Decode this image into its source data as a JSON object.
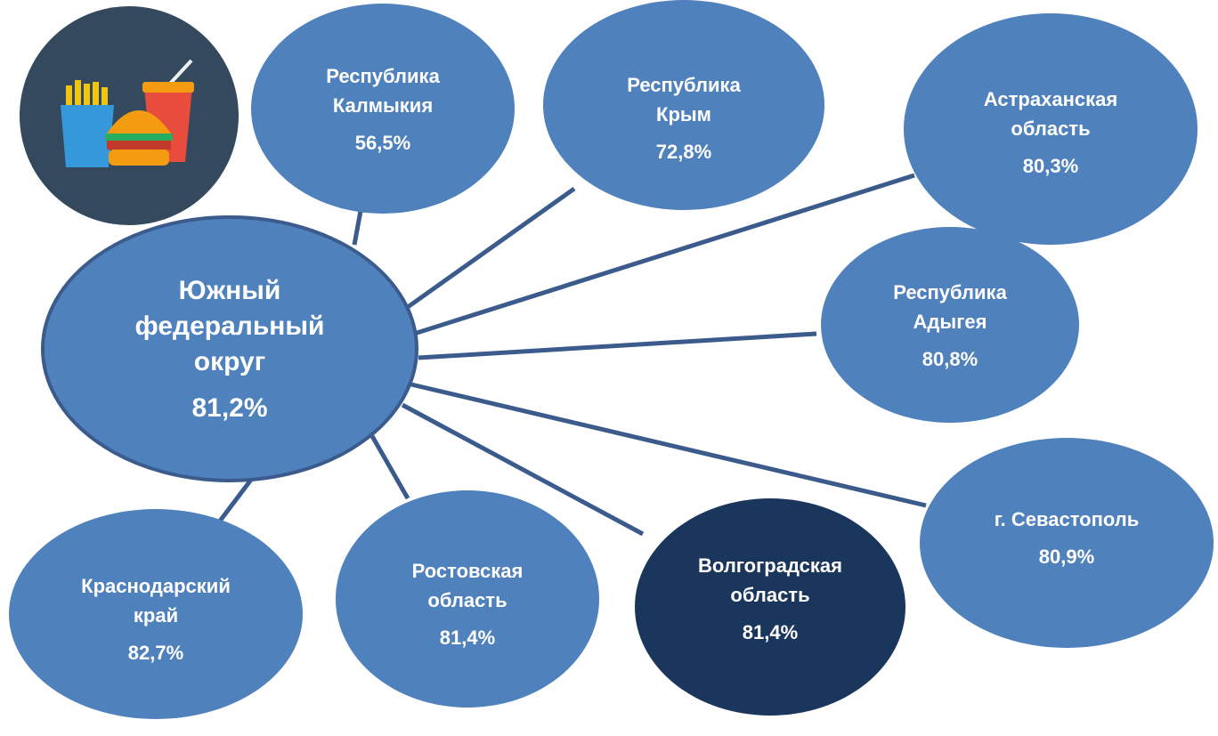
{
  "center": {
    "label": [
      "Южный",
      "федеральный",
      "округ"
    ],
    "value": "81,2%"
  },
  "nodes": [
    {
      "label": [
        "Республика",
        "Калмыкия"
      ],
      "value": "56,5%"
    },
    {
      "label": [
        "Республика",
        "Крым"
      ],
      "value": "72,8%"
    },
    {
      "label": [
        "Астраханская",
        "область"
      ],
      "value": "80,3%"
    },
    {
      "label": [
        "Республика",
        "Адыгея"
      ],
      "value": "80,8%"
    },
    {
      "label": [
        "г. Севастополь"
      ],
      "value": "80,9%"
    },
    {
      "label": [
        "Волгоградская",
        "область"
      ],
      "value": "81,4%"
    },
    {
      "label": [
        "Ростовская",
        "область"
      ],
      "value": "81,4%"
    },
    {
      "label": [
        "Краснодарский",
        "край"
      ],
      "value": "82,7%"
    }
  ]
}
